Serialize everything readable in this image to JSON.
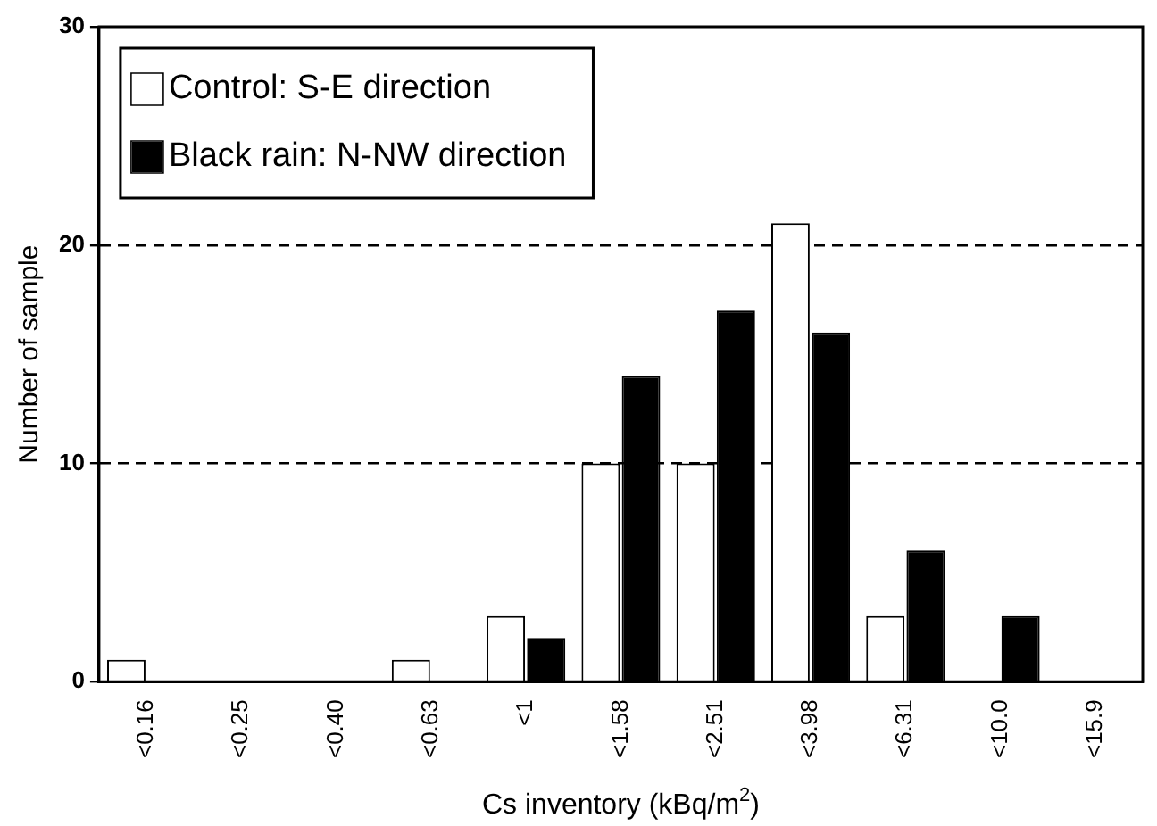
{
  "chart_data": {
    "type": "bar",
    "xlabel": "Cs inventory (kBq/m$^{2}$)",
    "ylabel": "Number of sample",
    "categories": [
      "<0.16",
      "<0.25",
      "<0.40",
      "<0.63",
      "<1",
      "<1.58",
      "<2.51",
      "<3.98",
      "<6.31",
      "<10.0",
      "<15.9"
    ],
    "series": [
      {
        "name": "Control: S-E direction",
        "color": "#ffffff",
        "values": [
          1,
          0,
          0,
          1,
          3,
          10,
          10,
          21,
          3,
          0,
          0
        ]
      },
      {
        "name": "Black rain: N-NW direction",
        "color": "#000000",
        "values": [
          0,
          0,
          0,
          0,
          2,
          14,
          17,
          16,
          6,
          3,
          0
        ]
      }
    ],
    "ylim": [
      0,
      30
    ],
    "yticks": [
      0,
      10,
      20,
      30
    ],
    "grid": "y",
    "legend": "top left"
  }
}
